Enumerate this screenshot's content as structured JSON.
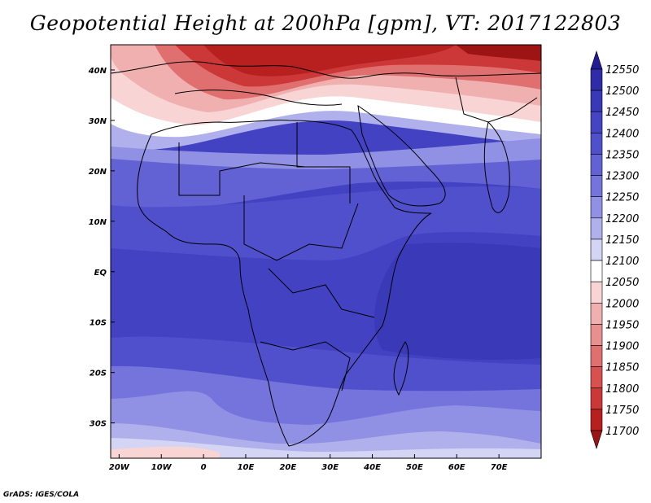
{
  "title": "Geopotential Height at 200hPa [gpm], VT: 2017122803",
  "credit": "GrADS: IGES/COLA",
  "map": {
    "lon_range": [
      -22,
      80
    ],
    "lat_range": [
      -37,
      45
    ],
    "x_ticks": [
      "20W",
      "10W",
      "0",
      "10E",
      "20E",
      "30E",
      "40E",
      "50E",
      "60E",
      "70E"
    ],
    "y_ticks": [
      "40N",
      "30N",
      "20N",
      "10N",
      "EQ",
      "10S",
      "20S",
      "30S"
    ]
  },
  "colorbar": {
    "levels": [
      "12550",
      "12500",
      "12450",
      "12400",
      "12350",
      "12300",
      "12250",
      "12200",
      "12150",
      "12100",
      "12050",
      "12000",
      "11950",
      "11900",
      "11850",
      "11800",
      "11750",
      "11700"
    ],
    "colors": [
      "#241c96",
      "#2e2ca8",
      "#3838b8",
      "#4444c4",
      "#5050cc",
      "#6262d4",
      "#7474dc",
      "#9090e4",
      "#b0b0ec",
      "#d4d4f4",
      "#ffffff",
      "#f8d4d4",
      "#f0b0b0",
      "#e89090",
      "#e07070",
      "#d85050",
      "#cc3838",
      "#b82020",
      "#9c1414"
    ]
  },
  "colors": {
    "frame": "#000000",
    "map_lines": "#000000"
  }
}
